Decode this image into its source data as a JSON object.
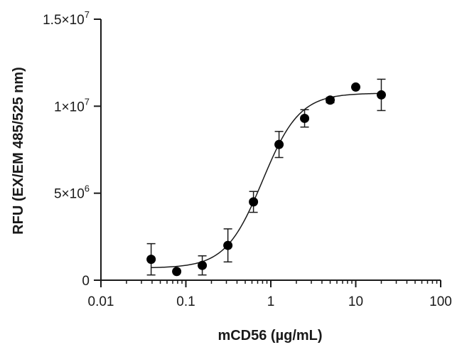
{
  "chart_data": {
    "type": "scatter",
    "title": "",
    "xlabel": "mCD56 (µg/mL)",
    "ylabel": "RFU (EX/EM 485/525 nm)",
    "x_scale": "log",
    "xlim": [
      0.01,
      100
    ],
    "ylim": [
      0,
      15000000
    ],
    "x_ticks": [
      {
        "value": 0.01,
        "label": "0.01"
      },
      {
        "value": 0.1,
        "label": "0.1"
      },
      {
        "value": 1,
        "label": "1"
      },
      {
        "value": 10,
        "label": "10"
      },
      {
        "value": 100,
        "label": "100"
      }
    ],
    "y_ticks": [
      {
        "value": 0,
        "base": "0",
        "exp": ""
      },
      {
        "value": 5000000,
        "base": "5×10",
        "exp": "6"
      },
      {
        "value": 10000000,
        "base": "1×10",
        "exp": "7"
      },
      {
        "value": 15000000,
        "base": "1.5×10",
        "exp": "7"
      }
    ],
    "grid": false,
    "legend": "none",
    "points": [
      {
        "x": 0.039,
        "y": 1200000,
        "err": 900000
      },
      {
        "x": 0.078,
        "y": 500000,
        "err": 0
      },
      {
        "x": 0.156,
        "y": 850000,
        "err": 550000
      },
      {
        "x": 0.3125,
        "y": 2000000,
        "err": 950000
      },
      {
        "x": 0.625,
        "y": 4500000,
        "err": 600000
      },
      {
        "x": 1.25,
        "y": 7800000,
        "err": 750000
      },
      {
        "x": 2.5,
        "y": 9300000,
        "err": 500000
      },
      {
        "x": 5,
        "y": 10350000,
        "err": 150000
      },
      {
        "x": 10,
        "y": 11100000,
        "err": 0
      },
      {
        "x": 20,
        "y": 10650000,
        "err": 900000
      }
    ],
    "fit_curve": {
      "model": "4PL",
      "bottom": 700000,
      "top": 10750000,
      "ec50": 0.8,
      "hill": 2.0,
      "x_range": [
        0.039,
        20
      ]
    },
    "colors": {
      "marker": "#000000",
      "line": "#1a1a1a",
      "axis": "#1a1a1a"
    }
  }
}
